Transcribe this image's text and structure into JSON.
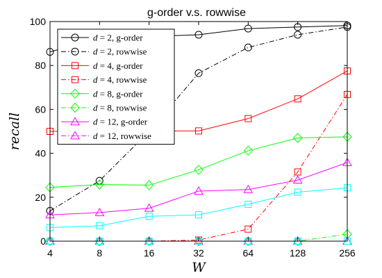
{
  "chart_data": {
    "type": "line",
    "title": "g-order v.s. rowwise",
    "xlabel": "W",
    "ylabel": "recall",
    "x_scale": "log2",
    "categories": [
      "4",
      "8",
      "16",
      "32",
      "64",
      "128",
      "256"
    ],
    "x": [
      4,
      8,
      16,
      32,
      64,
      128,
      256
    ],
    "xlim": [
      4,
      256
    ],
    "ylim": [
      0,
      100
    ],
    "y_ticks": [
      0,
      20,
      40,
      60,
      80,
      100
    ],
    "grid": false,
    "legend_position": "top-left",
    "series": [
      {
        "name": "d = 2, g-order",
        "legend_math": "d = 2",
        "legend_suffix": ", g-order",
        "color": "#000000",
        "marker": "circle",
        "dash": "solid",
        "values": [
          86.2,
          92.5,
          93.2,
          94.0,
          96.8,
          97.5,
          98.2
        ]
      },
      {
        "name": "d = 2, rowwise",
        "legend_math": "d = 2",
        "legend_suffix": ", rowwise",
        "color": "#000000",
        "marker": "circle",
        "dash": "dashdot",
        "values": [
          13.8,
          27.5,
          50.0,
          76.5,
          88.2,
          94.0,
          97.5
        ]
      },
      {
        "name": "d = 4, g-order",
        "legend_math": "d = 4",
        "legend_suffix": ", g-order",
        "color": "#ff0000",
        "marker": "square",
        "dash": "solid",
        "values": [
          50.0,
          50.2,
          50.2,
          50.2,
          55.8,
          64.8,
          77.5
        ]
      },
      {
        "name": "d = 4, rowwise",
        "legend_math": "d = 4",
        "legend_suffix": ", rowwise",
        "color": "#ff0000",
        "marker": "square",
        "dash": "dashdot",
        "values": [
          0.0,
          0.0,
          0.0,
          0.5,
          5.5,
          31.5,
          66.8
        ]
      },
      {
        "name": "d = 8, g-order",
        "legend_math": "d = 8",
        "legend_suffix": ", g-order",
        "color": "#00ff00",
        "marker": "diamond",
        "dash": "solid",
        "values": [
          24.5,
          25.8,
          25.5,
          32.5,
          41.2,
          47.0,
          47.5
        ]
      },
      {
        "name": "d = 8, rowwise",
        "legend_math": "d = 8",
        "legend_suffix": ", rowwise",
        "color": "#00ff00",
        "marker": "diamond",
        "dash": "dashdot",
        "values": [
          0.0,
          0.0,
          0.0,
          0.0,
          0.0,
          0.0,
          3.2
        ]
      },
      {
        "name": "d = 12, g-order",
        "legend_math": "d = 12",
        "legend_suffix": ", g-order",
        "color": "#ff00ff",
        "marker": "triangle",
        "dash": "solid",
        "values": [
          12.0,
          13.0,
          15.0,
          22.8,
          23.5,
          27.8,
          35.8
        ]
      },
      {
        "name": "d = 12, rowwise",
        "legend_math": "d = 12",
        "legend_suffix": ", rowwise",
        "color": "#ff00ff",
        "marker": "triangle",
        "dash": "dashdot",
        "values": [
          0.0,
          0.0,
          0.0,
          0.0,
          0.0,
          0.0,
          0.0
        ]
      },
      {
        "color": "#00ffff",
        "marker": "square",
        "dash": "solid",
        "in_legend": false,
        "values": [
          6.2,
          7.0,
          11.3,
          12.0,
          16.8,
          22.3,
          24.3
        ]
      },
      {
        "color": "#00ffff",
        "marker": "square",
        "dash": "dashdot",
        "in_legend": false,
        "values": [
          0.0,
          0.0,
          0.0,
          0.0,
          0.0,
          0.0,
          0.0
        ]
      }
    ]
  }
}
